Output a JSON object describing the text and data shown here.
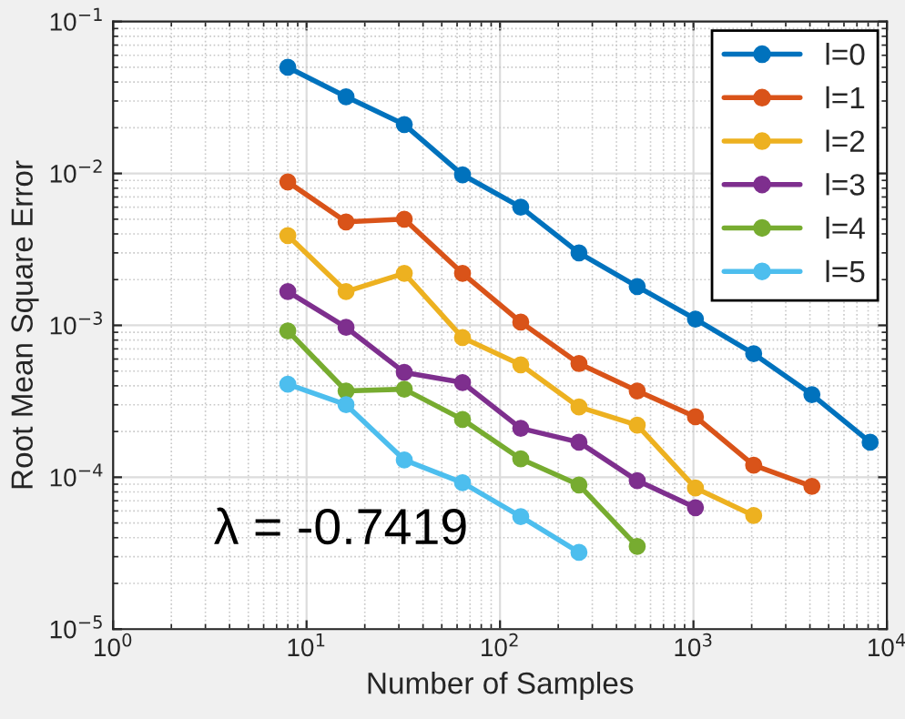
{
  "chart_data": {
    "type": "line",
    "xlabel": "Number of Samples",
    "ylabel": "Root Mean Square Error",
    "x": [
      8,
      16,
      32,
      64,
      128,
      256,
      512,
      1024,
      2048,
      4096,
      8192
    ],
    "series": [
      {
        "name": "l=0",
        "color": "#0072bd",
        "values": [
          0.05,
          0.032,
          0.021,
          0.0098,
          0.006,
          0.003,
          0.0018,
          0.0011,
          0.00065,
          0.00035,
          0.00017
        ]
      },
      {
        "name": "l=1",
        "color": "#d95319",
        "values": [
          0.0088,
          0.0048,
          0.005,
          0.0022,
          0.00105,
          0.00056,
          0.00037,
          0.00025,
          0.00012,
          8.7e-05,
          null
        ]
      },
      {
        "name": "l=2",
        "color": "#edb120",
        "values": [
          0.0039,
          0.00167,
          0.0022,
          0.00083,
          0.00055,
          0.00029,
          0.00022,
          8.5e-05,
          5.6e-05,
          null,
          null
        ]
      },
      {
        "name": "l=3",
        "color": "#7e2f8e",
        "values": [
          0.00167,
          0.00097,
          0.00049,
          0.00042,
          0.00021,
          0.00017,
          9.5e-05,
          6.3e-05,
          null,
          null,
          null
        ]
      },
      {
        "name": "l=4",
        "color": "#77ac30",
        "values": [
          0.00092,
          0.00037,
          0.00038,
          0.00024,
          0.000132,
          8.9e-05,
          3.5e-05,
          null,
          null,
          null,
          null
        ]
      },
      {
        "name": "l=5",
        "color": "#4dbeee",
        "values": [
          0.00041,
          0.0003,
          0.00013,
          9.2e-05,
          5.5e-05,
          3.2e-05,
          null,
          null,
          null,
          null,
          null
        ]
      }
    ],
    "log": "xy",
    "xlim": [
      1,
      10000
    ],
    "ylim": [
      1e-05,
      0.1
    ],
    "xticks": [
      {
        "value": 1,
        "label": "10$^{0}$"
      },
      {
        "value": 10,
        "label": "10$^{1}$"
      },
      {
        "value": 100,
        "label": "10$^{2}$"
      },
      {
        "value": 1000,
        "label": "10$^{3}$"
      },
      {
        "value": 10000,
        "label": "10$^{4}$"
      }
    ],
    "yticks": [
      {
        "value": 1e-05,
        "label": "10$^{−5}$"
      },
      {
        "value": 0.0001,
        "label": "10$^{−4}$"
      },
      {
        "value": 0.001,
        "label": "10$^{−3}$"
      },
      {
        "value": 0.01,
        "label": "10$^{−2}$"
      },
      {
        "value": 0.1,
        "label": "10$^{−1}$"
      }
    ],
    "annotations": [
      "λ = -0.7419"
    ],
    "grid": true,
    "legend": "top right",
    "marker": "circle",
    "line_style": "solid"
  }
}
